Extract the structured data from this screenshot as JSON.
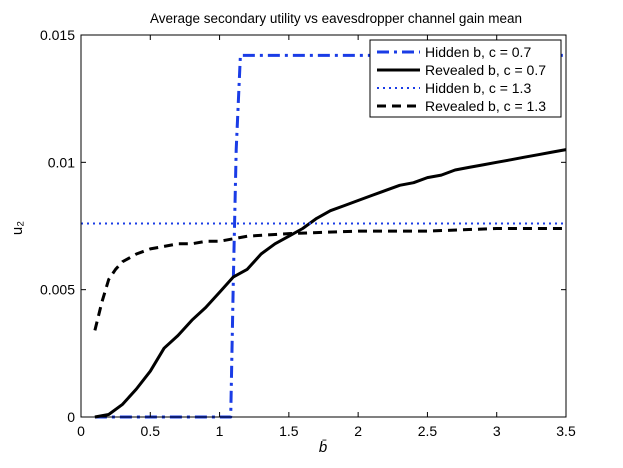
{
  "chart_data": {
    "type": "line",
    "title": "Average secondary utility vs eavesdropper channel gain mean",
    "xlabel": "b̄",
    "ylabel": "u₂",
    "xlim": [
      0,
      3.5
    ],
    "ylim": [
      0,
      0.015
    ],
    "grid": false,
    "legend_position": "top-right",
    "x_ticks": [
      {
        "value": 0,
        "label": "0"
      },
      {
        "value": 0.5,
        "label": "0.5"
      },
      {
        "value": 1,
        "label": "1"
      },
      {
        "value": 1.5,
        "label": "1.5"
      },
      {
        "value": 2,
        "label": "2"
      },
      {
        "value": 2.5,
        "label": "2.5"
      },
      {
        "value": 3,
        "label": "3"
      },
      {
        "value": 3.5,
        "label": "3.5"
      }
    ],
    "y_ticks": [
      {
        "value": 0,
        "label": "0"
      },
      {
        "value": 0.005,
        "label": "0.005"
      },
      {
        "value": 0.01,
        "label": "0.01"
      },
      {
        "value": 0.015,
        "label": "0.015"
      }
    ],
    "series": [
      {
        "name": "Hidden b, c = 0.7",
        "color": "#1a3ce6",
        "style": "dashdot",
        "x": [
          0.1,
          1.08,
          1.1,
          1.12,
          1.15,
          3.5
        ],
        "y": [
          0.0,
          0.0,
          0.0055,
          0.0105,
          0.0142,
          0.0142
        ]
      },
      {
        "name": "Revealed b, c = 0.7",
        "color": "#000000",
        "style": "solid",
        "x": [
          0.1,
          0.2,
          0.3,
          0.4,
          0.5,
          0.6,
          0.7,
          0.8,
          0.9,
          1.0,
          1.1,
          1.2,
          1.3,
          1.4,
          1.5,
          1.6,
          1.7,
          1.8,
          1.9,
          2.0,
          2.1,
          2.2,
          2.3,
          2.4,
          2.5,
          2.6,
          2.7,
          2.8,
          2.9,
          3.0,
          3.1,
          3.2,
          3.3,
          3.4,
          3.5
        ],
        "y": [
          0.0,
          0.0001,
          0.0005,
          0.0011,
          0.0018,
          0.0027,
          0.0032,
          0.0038,
          0.0043,
          0.0049,
          0.0055,
          0.0058,
          0.0064,
          0.0068,
          0.0071,
          0.0074,
          0.0078,
          0.0081,
          0.0083,
          0.0085,
          0.0087,
          0.0089,
          0.0091,
          0.0092,
          0.0094,
          0.0095,
          0.0097,
          0.0098,
          0.0099,
          0.01,
          0.0101,
          0.0102,
          0.0103,
          0.0104,
          0.0105
        ]
      },
      {
        "name": "Hidden b, c = 1.3",
        "color": "#1a3ce6",
        "style": "dotted",
        "x": [
          0,
          3.5
        ],
        "y": [
          0.0076,
          0.0076
        ]
      },
      {
        "name": "Revealed b, c = 1.3",
        "color": "#000000",
        "style": "dashed",
        "x": [
          0.1,
          0.15,
          0.2,
          0.25,
          0.3,
          0.4,
          0.5,
          0.6,
          0.7,
          0.8,
          0.9,
          1.0,
          1.2,
          1.5,
          2.0,
          2.5,
          3.0,
          3.5
        ],
        "y": [
          0.0034,
          0.0045,
          0.0054,
          0.0058,
          0.0061,
          0.0064,
          0.0066,
          0.0067,
          0.0068,
          0.0068,
          0.0069,
          0.0069,
          0.0071,
          0.0072,
          0.0073,
          0.0073,
          0.0074,
          0.0074
        ]
      }
    ]
  }
}
